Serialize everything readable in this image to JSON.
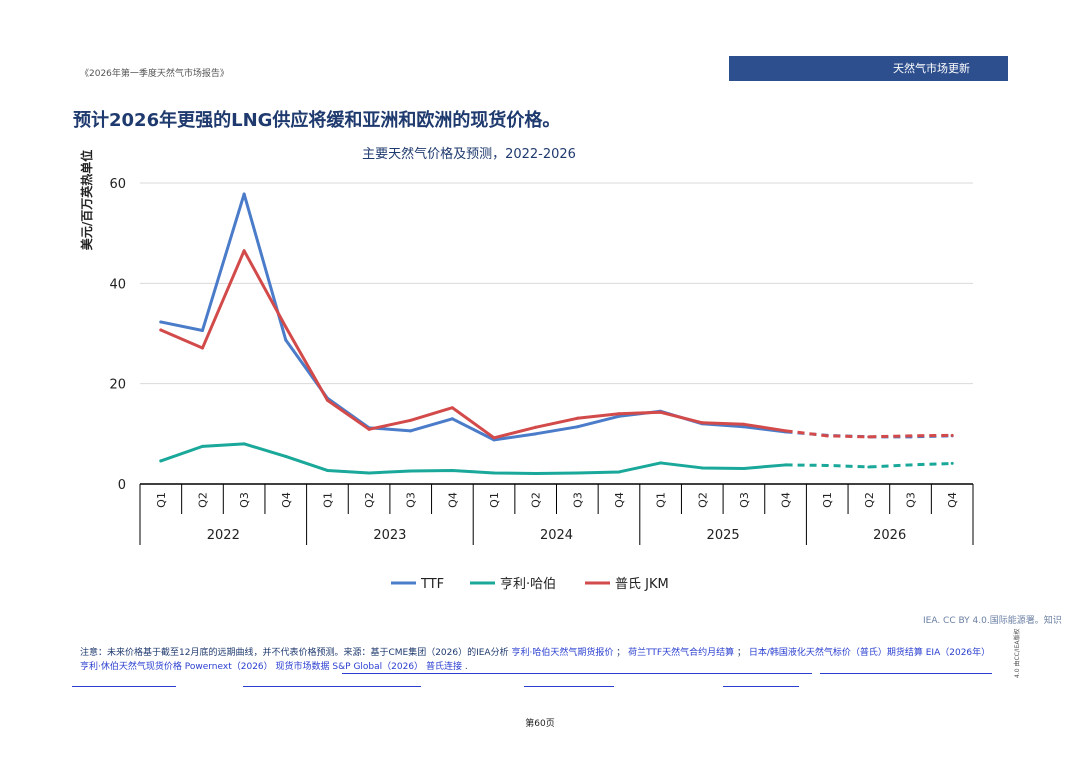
{
  "header": {
    "report_title": "《2026年第一季度天然气市场报告》",
    "section_label": "天然气市场更新"
  },
  "heading": "预计2026年更强的LNG供应将缓和亚洲和欧洲的现货价格。",
  "chart_data": {
    "type": "line",
    "title": "主要天然气价格及预测，2022-2026",
    "ylabel": "美元/百万英热单位",
    "xlabel": "",
    "ylim": [
      0,
      60
    ],
    "yticks": [
      0,
      20,
      40,
      60
    ],
    "grid": true,
    "legend_position": "bottom",
    "categories": [
      "Q1",
      "Q2",
      "Q3",
      "Q4",
      "Q1",
      "Q2",
      "Q3",
      "Q4",
      "Q1",
      "Q2",
      "Q3",
      "Q4",
      "Q1",
      "Q2",
      "Q3",
      "Q4",
      "Q1",
      "Q2",
      "Q3",
      "Q4"
    ],
    "years": [
      "2022",
      "2023",
      "2024",
      "2025",
      "2026"
    ],
    "forecast_start_index": 15,
    "series": [
      {
        "name": "TTF",
        "color": "#4a7cc9",
        "values": [
          32.3,
          30.6,
          57.8,
          28.7,
          17.1,
          11.2,
          10.6,
          13.0,
          8.8,
          10.0,
          11.4,
          13.5,
          14.5,
          12.0,
          11.4,
          10.4,
          9.7,
          9.4,
          9.4,
          9.6
        ]
      },
      {
        "name": "亨利·哈伯",
        "color": "#1aa89a",
        "values": [
          4.6,
          7.5,
          8.0,
          5.5,
          2.7,
          2.2,
          2.6,
          2.7,
          2.2,
          2.1,
          2.2,
          2.4,
          4.2,
          3.2,
          3.1,
          3.8,
          3.7,
          3.4,
          3.8,
          4.1
        ]
      },
      {
        "name": "普氏 JKM",
        "color": "#d24a4a",
        "values": [
          30.7,
          27.1,
          46.5,
          31.3,
          16.7,
          10.9,
          12.7,
          15.2,
          9.2,
          11.3,
          13.1,
          14.0,
          14.3,
          12.2,
          11.9,
          10.6,
          9.6,
          9.4,
          9.6,
          9.7
        ]
      }
    ]
  },
  "credit": "IEA. CC BY 4.0.国际能源署。知识",
  "note": {
    "prefix": "注意：未来价格基于截至12月底的远期曲线，并不代表价格预测。来源：基于CME集团（2026）的IEA分析",
    "links": [
      "亨利·哈伯天然气期货报价",
      "荷兰TTF天然气合约月结算",
      "日本/韩国液化天然气标价（普氏）期货结算",
      "EIA（2026年）",
      "亨利·休伯天然气现货价格",
      "Powernext（2026）",
      "现货市场数据",
      "S&P Global（2026）",
      "普氏连接"
    ],
    "separators": [
      " ； ",
      " ； ",
      "    ",
      "  ",
      "  ",
      "  ",
      "  ",
      "  ",
      " ."
    ]
  },
  "license": "4.0 由CC/IEA版权",
  "page_number": "第60页"
}
